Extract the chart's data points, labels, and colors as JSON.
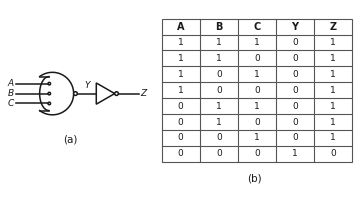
{
  "title_a": "(a)",
  "title_b": "(b)",
  "table_headers": [
    "A",
    "B",
    "C",
    "Y",
    "Z"
  ],
  "table_data": [
    [
      1,
      1,
      1,
      0,
      1
    ],
    [
      1,
      1,
      0,
      0,
      1
    ],
    [
      1,
      0,
      1,
      0,
      1
    ],
    [
      1,
      0,
      0,
      0,
      1
    ],
    [
      0,
      1,
      1,
      0,
      1
    ],
    [
      0,
      1,
      0,
      0,
      1
    ],
    [
      0,
      0,
      1,
      0,
      1
    ],
    [
      0,
      0,
      0,
      1,
      0
    ]
  ],
  "input_labels": [
    "A",
    "B",
    "C"
  ],
  "background_color": "#ffffff",
  "line_color": "#1a1a1a",
  "text_color": "#1a1a1a",
  "table_line_color": "#555555",
  "gate_lw": 1.1,
  "bubble_r": 0.13
}
